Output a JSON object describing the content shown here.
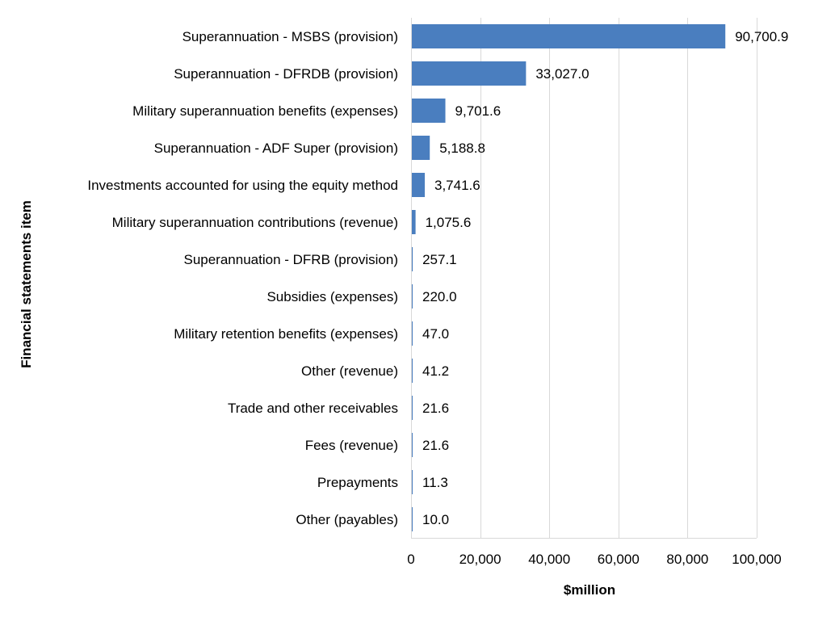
{
  "chart_data": {
    "type": "bar",
    "orientation": "horizontal",
    "categories": [
      "Superannuation - MSBS (provision)",
      "Superannuation - DFRDB (provision)",
      "Military superannuation benefits (expenses)",
      "Superannuation - ADF Super (provision)",
      "Investments accounted for using the equity method",
      "Military superannuation contributions (revenue)",
      "Superannuation - DFRB (provision)",
      "Subsidies (expenses)",
      "Military retention benefits (expenses)",
      "Other (revenue)",
      "Trade and other receivables",
      "Fees (revenue)",
      "Prepayments",
      "Other (payables)"
    ],
    "values": [
      90700.9,
      33027.0,
      9701.6,
      5188.8,
      3741.6,
      1075.6,
      257.1,
      220.0,
      47.0,
      41.2,
      21.6,
      21.6,
      11.3,
      10.0
    ],
    "value_labels": [
      "90,700.9",
      "33,027.0",
      "9,701.6",
      "5,188.8",
      "3,741.6",
      "1,075.6",
      "257.1",
      "220.0",
      "47.0",
      "41.2",
      "21.6",
      "21.6",
      "11.3",
      "10.0"
    ],
    "xlabel": "$million",
    "ylabel": "Financial statements item",
    "xlim": [
      0,
      100000
    ],
    "xticks": [
      0,
      20000,
      40000,
      60000,
      80000,
      100000
    ],
    "xtick_labels": [
      "0",
      "20,000",
      "40,000",
      "60,000",
      "80,000",
      "100,000"
    ],
    "grid": "vertical",
    "legend": "none",
    "bar_color": "#4a7ebf"
  }
}
